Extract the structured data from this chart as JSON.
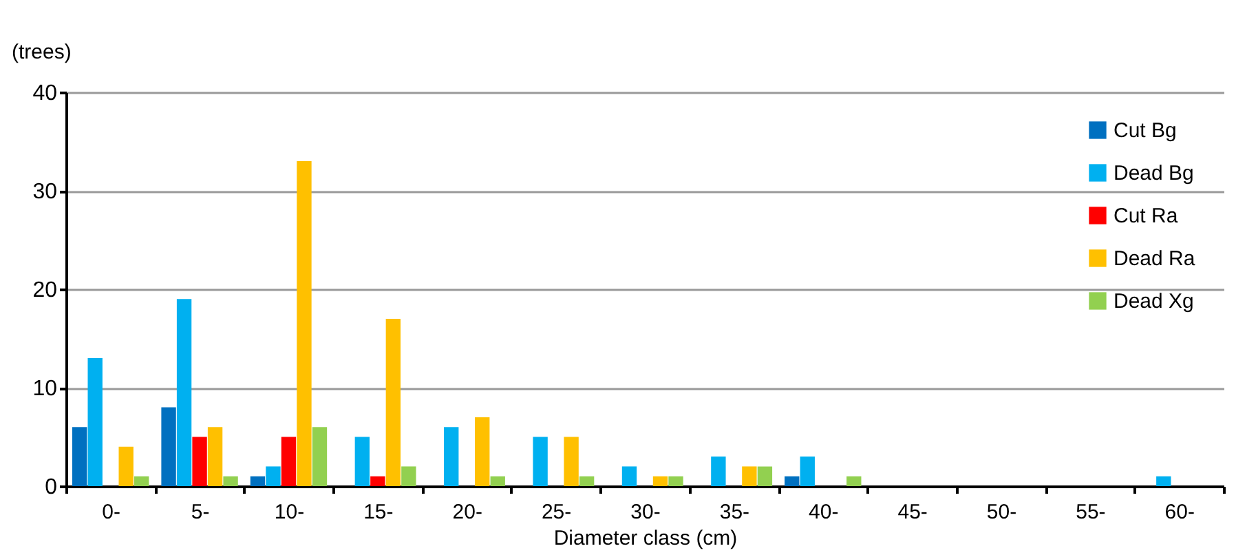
{
  "chart_data": {
    "type": "bar",
    "xlabel": "Diameter class (cm)",
    "ylabel": "(trees)",
    "categories": [
      "0-",
      "5-",
      "10-",
      "15-",
      "20-",
      "25-",
      "30-",
      "35-",
      "40-",
      "45-",
      "50-",
      "55-",
      "60-"
    ],
    "series": [
      {
        "name": "Cut Bg",
        "color": "#0070c0",
        "values": [
          6,
          8,
          1,
          0,
          0,
          0,
          0,
          0,
          1,
          0,
          0,
          0,
          0
        ]
      },
      {
        "name": "Dead Bg",
        "color": "#00b0f0",
        "values": [
          13,
          19,
          2,
          5,
          6,
          5,
          2,
          3,
          3,
          0,
          0,
          0,
          1
        ]
      },
      {
        "name": "Cut Ra",
        "color": "#ff0000",
        "values": [
          0,
          5,
          5,
          1,
          0,
          0,
          0,
          0,
          0,
          0,
          0,
          0,
          0
        ]
      },
      {
        "name": "Dead Ra",
        "color": "#ffc000",
        "values": [
          4,
          6,
          33,
          17,
          7,
          5,
          1,
          2,
          0,
          0,
          0,
          0,
          0
        ]
      },
      {
        "name": "Dead Xg",
        "color": "#92d050",
        "values": [
          1,
          1,
          6,
          2,
          1,
          1,
          1,
          2,
          1,
          0,
          0,
          0,
          0
        ]
      }
    ],
    "ylim": [
      0,
      40
    ],
    "yticks": [
      0,
      10,
      20,
      30,
      40
    ],
    "grid": "y",
    "legend": "top right"
  }
}
